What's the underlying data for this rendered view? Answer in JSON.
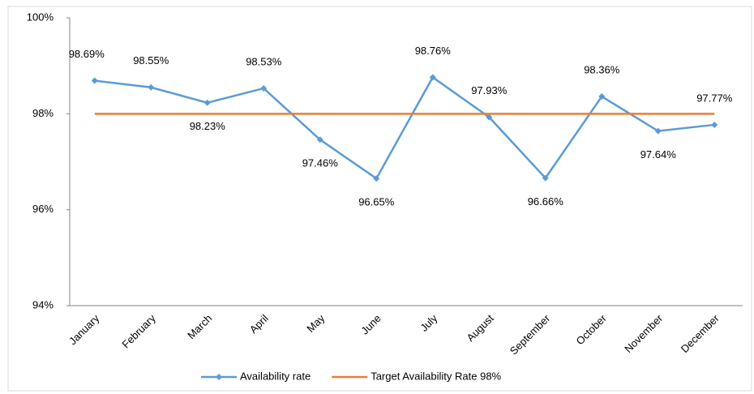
{
  "chart_data": {
    "type": "line",
    "categories": [
      "January",
      "February",
      "March",
      "April",
      "May",
      "June",
      "July",
      "August",
      "September",
      "October",
      "November",
      "December"
    ],
    "series": [
      {
        "name": "Availability rate",
        "color": "#5b9bd5",
        "marker": "diamond",
        "values": [
          98.69,
          98.55,
          98.23,
          98.53,
          97.46,
          96.65,
          98.76,
          97.93,
          96.66,
          98.36,
          97.64,
          97.77
        ],
        "value_labels": [
          "98.69%",
          "98.55%",
          "98.23%",
          "98.53%",
          "97.46%",
          "96.65%",
          "98.76%",
          "97.93%",
          "96.66%",
          "98.36%",
          "97.64%",
          "97.77%"
        ]
      },
      {
        "name": "Target Availability Rate 98%",
        "color": "#ed7d31",
        "values": [
          98,
          98,
          98,
          98,
          98,
          98,
          98,
          98,
          98,
          98,
          98,
          98
        ]
      }
    ],
    "ylim": [
      94,
      100
    ],
    "yticks": [
      {
        "value": 94,
        "label": "94%"
      },
      {
        "value": 96,
        "label": "96%"
      },
      {
        "value": 98,
        "label": "98%"
      },
      {
        "value": 100,
        "label": "100%"
      }
    ],
    "grid": false,
    "legend": "bottom"
  }
}
